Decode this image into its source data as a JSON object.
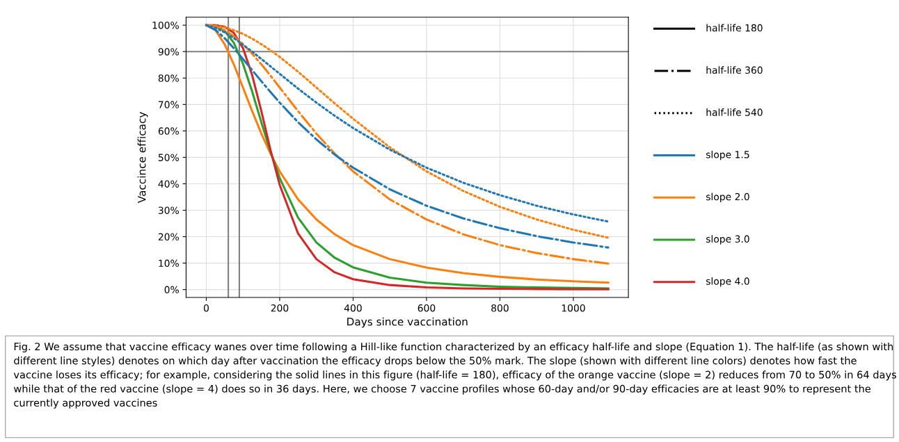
{
  "chart_data": {
    "type": "line",
    "xlabel": "Days since vaccination",
    "ylabel": "Vaccince efficacy",
    "x": [
      0,
      25,
      50,
      75,
      100,
      125,
      150,
      175,
      200,
      250,
      300,
      350,
      400,
      500,
      600,
      700,
      800,
      900,
      1000,
      1095
    ],
    "series": [
      {
        "color": "#ff7f0e",
        "line_style": "solid",
        "values": [
          100,
          98.1,
          92.8,
          85.2,
          76.4,
          67.5,
          59.0,
          51.4,
          44.7,
          34.1,
          26.5,
          20.9,
          16.8,
          11.5,
          8.3,
          6.2,
          4.8,
          3.8,
          3.1,
          2.6
        ]
      },
      {
        "color": "#2ca02c",
        "line_style": "solid",
        "values": [
          100,
          99.7,
          97.9,
          93.3,
          85.4,
          74.9,
          63.3,
          52.1,
          42.2,
          27.2,
          17.8,
          12.0,
          8.4,
          4.5,
          2.6,
          1.7,
          1.1,
          0.8,
          0.6,
          0.4
        ]
      },
      {
        "color": "#d62728",
        "line_style": "solid",
        "values": [
          100,
          100,
          99.4,
          97.1,
          91.3,
          81.1,
          67.5,
          52.8,
          39.6,
          21.2,
          11.5,
          6.5,
          3.9,
          1.7,
          0.8,
          0.4,
          0.3,
          0.2,
          0.1,
          0.1
        ]
      },
      {
        "color": "#ff7f0e",
        "line_style": "dashdot",
        "values": [
          100,
          99.5,
          98.1,
          95.8,
          92.8,
          89.2,
          85.2,
          80.9,
          76.4,
          67.5,
          59.0,
          51.4,
          44.7,
          34.1,
          26.5,
          20.9,
          16.8,
          13.8,
          11.5,
          9.8
        ]
      },
      {
        "color": "#1f77b4",
        "line_style": "dashdot",
        "values": [
          100,
          98.2,
          95.1,
          91.3,
          87.2,
          83.0,
          78.8,
          74.7,
          70.7,
          63.3,
          56.8,
          51.0,
          46.1,
          37.9,
          31.7,
          26.9,
          23.2,
          20.2,
          17.8,
          15.9
        ]
      },
      {
        "color": "#ff7f0e",
        "line_style": "dotted",
        "values": [
          100,
          99.8,
          99.2,
          98.1,
          96.7,
          94.9,
          92.8,
          90.5,
          88.0,
          82.4,
          76.4,
          70.4,
          64.6,
          53.8,
          44.7,
          37.3,
          31.3,
          26.5,
          22.6,
          19.6
        ]
      },
      {
        "color": "#1f77b4",
        "line_style": "dotted",
        "values": [
          100,
          99.0,
          97.3,
          95.1,
          92.6,
          90.0,
          87.2,
          84.4,
          81.6,
          76.0,
          70.7,
          65.7,
          61.1,
          52.9,
          46.1,
          40.4,
          35.7,
          31.7,
          28.4,
          25.7
        ]
      }
    ],
    "xlim": [
      -55,
      1150
    ],
    "xticks": [
      0,
      200,
      400,
      600,
      800,
      1000
    ],
    "ylim": [
      -3,
      103
    ],
    "yticks": [
      {
        "value": 0,
        "label": "0%"
      },
      {
        "value": 10,
        "label": "10%"
      },
      {
        "value": 20,
        "label": "20%"
      },
      {
        "value": 30,
        "label": "30%"
      },
      {
        "value": 40,
        "label": "40%"
      },
      {
        "value": 50,
        "label": "50%"
      },
      {
        "value": 60,
        "label": "60%"
      },
      {
        "value": 70,
        "label": "70%"
      },
      {
        "value": 80,
        "label": "80%"
      },
      {
        "value": 90,
        "label": "90%"
      },
      {
        "value": 100,
        "label": "100%"
      }
    ],
    "grid": true,
    "ref_lines": [
      {
        "axis": "y",
        "value": 90,
        "color": "#808080"
      },
      {
        "axis": "x",
        "value": 60,
        "color": "#808080"
      },
      {
        "axis": "x",
        "value": 90,
        "color": "#808080"
      }
    ],
    "annotations": [
      "Fig. 2 We assume that vaccine efficacy wanes over time following a Hill-like function characterized by an efficacy half-life and slope (Equation 1). The half-life (as shown with different line styles) denotes on which day after vaccination the efficacy drops below the 50% mark. The slope (shown with different line colors) denotes how fast the vaccine loses its efficacy; for example, considering the solid lines in this figure (half-life = 180), efficacy of the orange vaccine (slope = 2) reduces from 70 to 50% in 64 days while that of the red vaccine (slope = 4) does so in 36 days. Here, we choose 7 vaccine profiles whose 60-day and/or 90-day efficacies are at least 90% to represent the currently approved vaccines",
      "half-life 180",
      "half-life 360",
      "half-life 540",
      "slope 1.5",
      "slope 2.0",
      "slope 3.0",
      "slope 4.0"
    ]
  }
}
